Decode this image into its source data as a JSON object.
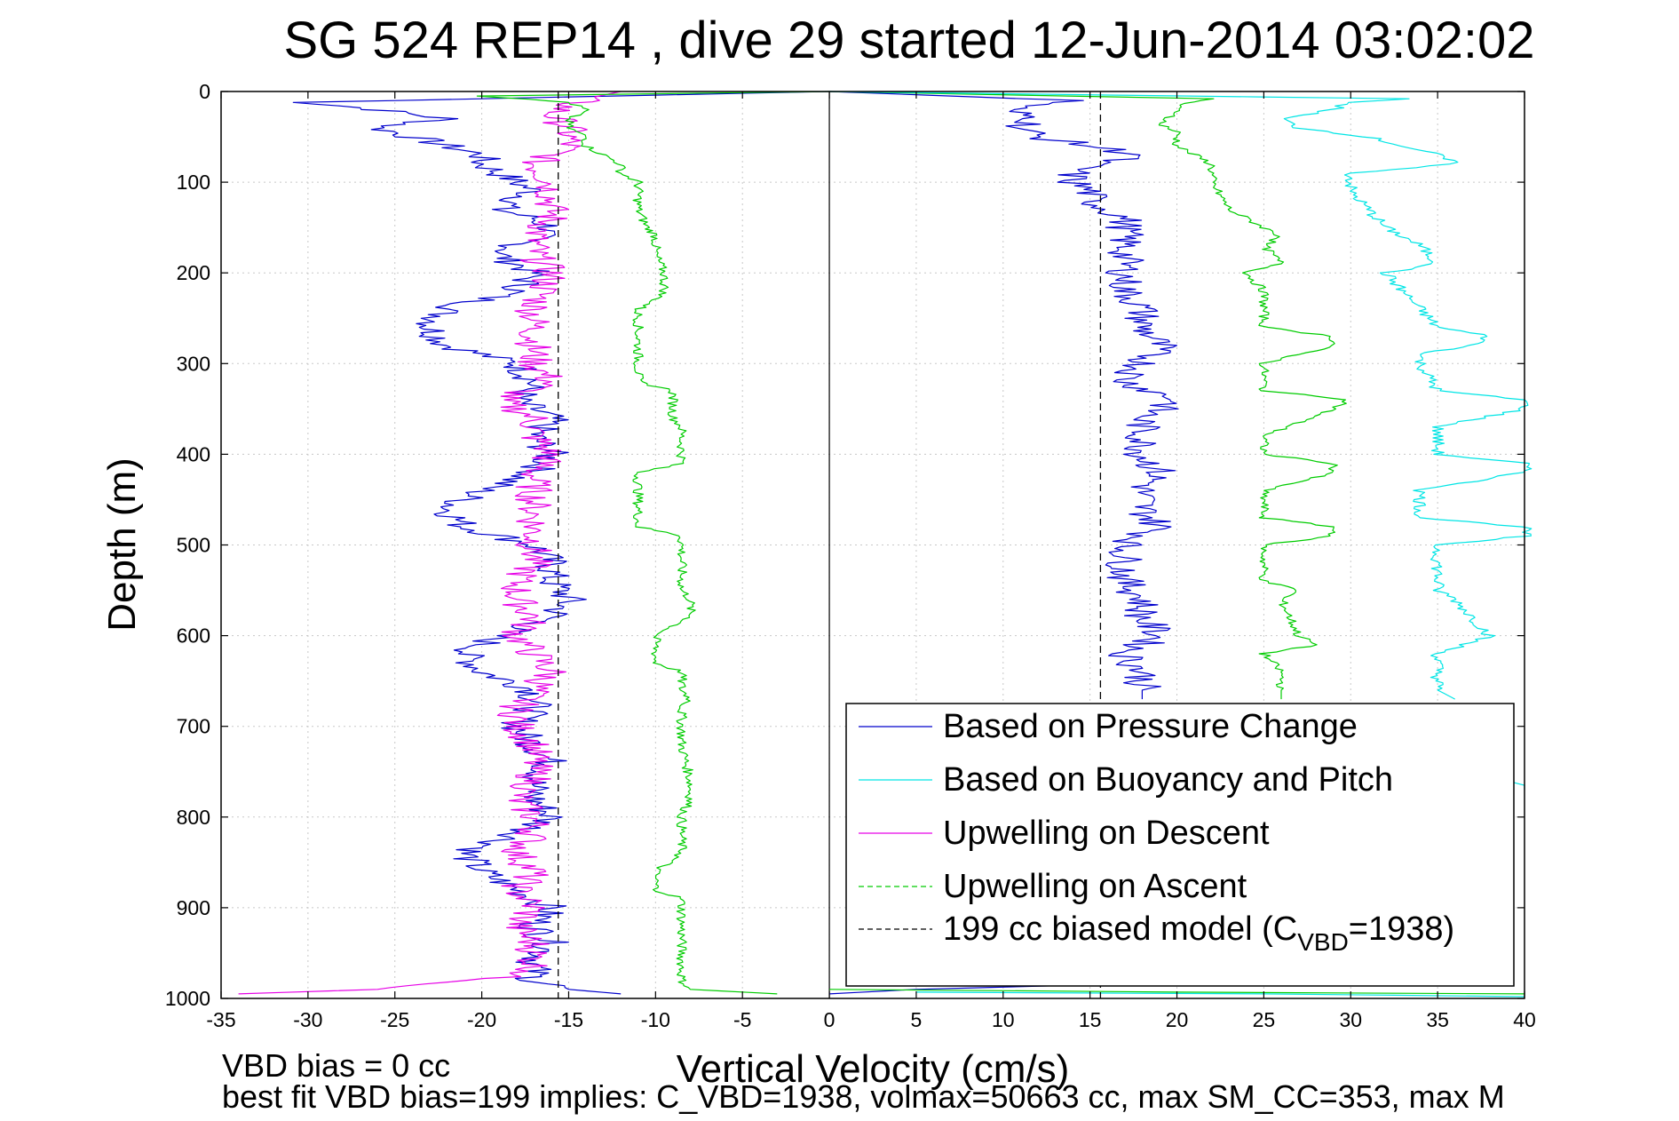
{
  "chart_data": {
    "type": "line",
    "title": "SG 524   REP14  , dive 29 started 12-Jun-2014 03:02:02",
    "xlabel": "Vertical Velocity (cm/s)",
    "ylabel": "Depth (m)",
    "xlim": [
      -35,
      40
    ],
    "ylim": [
      0,
      1000
    ],
    "y_reversed": true,
    "grid": true,
    "legend_position": "bottom-right",
    "x_ticks": [
      "-35",
      "-30",
      "-25",
      "-20",
      "-15",
      "-10",
      "-5",
      "0",
      "5",
      "10",
      "15",
      "20",
      "25",
      "30",
      "35",
      "40"
    ],
    "y_ticks": [
      "0",
      "100",
      "200",
      "300",
      "400",
      "500",
      "600",
      "700",
      "800",
      "900",
      "1000"
    ],
    "footer": [
      "VBD bias = 0 cc",
      "best fit VBD bias=199 implies: C_VBD=1938, volmax=50663 cc, max SM_CC=353, max M"
    ],
    "legend": [
      {
        "label": "Based on Pressure Change",
        "color": "#0000cc",
        "dashed": false
      },
      {
        "label": "Based on Buoyancy and Pitch",
        "color": "#00e5e5",
        "dashed": false
      },
      {
        "label": "Upwelling on Descent",
        "color": "#e600e6",
        "dashed": false
      },
      {
        "label": "Upwelling on Ascent",
        "color": "#00cc00",
        "dashed": true
      },
      {
        "label": "199 cc biased model (C",
        "sub": "VBD",
        "suffix": "=1938)",
        "color": "#000000",
        "dashed": true
      }
    ],
    "series": [
      {
        "name": "Based on Pressure Change",
        "color": "#0000cc",
        "dashed": false,
        "depth": [
          0,
          8,
          12,
          20,
          30,
          40,
          50,
          60,
          70,
          80,
          90,
          100,
          110,
          120,
          130,
          140,
          150,
          160,
          170,
          180,
          190,
          200,
          220,
          240,
          260,
          280,
          300,
          320,
          340,
          360,
          380,
          400,
          420,
          440,
          460,
          480,
          500,
          520,
          540,
          560,
          580,
          600,
          620,
          640,
          660,
          680,
          700,
          720,
          740,
          760,
          780,
          800,
          820,
          840,
          860,
          880,
          900,
          920,
          940,
          960,
          980,
          990,
          995
        ],
        "x": [
          0,
          -20,
          -30,
          -26,
          -22,
          -26,
          -24,
          -22,
          -20,
          -20,
          -19,
          -18,
          -17,
          -18,
          -19,
          -17,
          -16,
          -17,
          -18,
          -19,
          -18,
          -17,
          -18,
          -22,
          -23,
          -22,
          -18,
          -17,
          -18,
          -16,
          -17,
          -16,
          -17,
          -20,
          -22,
          -21,
          -17,
          -16,
          -16,
          -15,
          -16,
          -19,
          -21,
          -20,
          -17,
          -17,
          -18,
          -17,
          -16,
          -17,
          -17,
          -16,
          -18,
          -21,
          -20,
          -18,
          -16,
          -17,
          -16,
          -17,
          -17,
          -15,
          -12
        ]
      },
      {
        "name": "Upwelling on Descent",
        "color": "#e600e6",
        "dashed": false,
        "depth": [
          0,
          8,
          15,
          25,
          40,
          60,
          80,
          100,
          120,
          140,
          160,
          180,
          200,
          240,
          280,
          300,
          320,
          340,
          360,
          380,
          400,
          420,
          440,
          460,
          480,
          500,
          520,
          540,
          560,
          580,
          600,
          620,
          640,
          660,
          680,
          700,
          720,
          740,
          760,
          780,
          800,
          820,
          840,
          860,
          880,
          900,
          920,
          940,
          960,
          970,
          980,
          990,
          995
        ],
        "x": [
          -12,
          -14,
          -15,
          -16,
          -15,
          -15,
          -17,
          -16,
          -16,
          -16,
          -17,
          -17,
          -16,
          -17,
          -17,
          -17,
          -16,
          -19,
          -17,
          -17,
          -16,
          -17,
          -17,
          -17,
          -17,
          -17,
          -17,
          -18,
          -18,
          -17,
          -18,
          -17,
          -16,
          -17,
          -18,
          -18,
          -17,
          -17,
          -17,
          -18,
          -17,
          -17,
          -18,
          -17,
          -18,
          -17,
          -18,
          -17,
          -17,
          -17,
          -20,
          -26,
          -34
        ]
      },
      {
        "name": "Upwelling on Ascent",
        "color": "#00cc00",
        "dashed": true,
        "depth": [
          0,
          5,
          12,
          20,
          30,
          40,
          50,
          60,
          70,
          80,
          90,
          100,
          110,
          130,
          150,
          155,
          160,
          180,
          200,
          220,
          230,
          240,
          320,
          330,
          340,
          360,
          370,
          380,
          390,
          400,
          410,
          420,
          480,
          490,
          500,
          520,
          540,
          550,
          560,
          570,
          580,
          600,
          620,
          630,
          640,
          660,
          670,
          680,
          720,
          760,
          780,
          800,
          840,
          860,
          880,
          890,
          900,
          920,
          950,
          980,
          990,
          995
        ],
        "x": [
          0,
          -20,
          -15,
          -14,
          -15,
          -15,
          -14,
          -14,
          -13,
          -12,
          -12,
          -11,
          -11,
          -11,
          -10.5,
          -10.2,
          -10,
          -10,
          -9.5,
          -9.5,
          -10,
          -11,
          -11,
          -9,
          -9,
          -9,
          -8.5,
          -8.5,
          -8.5,
          -8.5,
          -8.5,
          -11,
          -11,
          -8.5,
          -8.5,
          -8.5,
          -8.5,
          -8.5,
          -8,
          -8,
          -8,
          -10,
          -10,
          -10,
          -8.5,
          -8.5,
          -8,
          -8.5,
          -8.5,
          -8,
          -8,
          -8.5,
          -8.5,
          -10,
          -10,
          -8.5,
          -8.5,
          -8.5,
          -8.5,
          -8.5,
          -8,
          -3
        ]
      },
      {
        "name": "Based on Pressure Change",
        "color": "#0000cc",
        "dashed": false,
        "depth": [
          0,
          10,
          20,
          30,
          40,
          50,
          60,
          70,
          80,
          90,
          100,
          110,
          120,
          130,
          140,
          160,
          180,
          200,
          220,
          240,
          260,
          280,
          300,
          320,
          340,
          360,
          380,
          400,
          420,
          440,
          460,
          480,
          500,
          520,
          540,
          560,
          580,
          600,
          620,
          640,
          660,
          670
        ],
        "x": [
          0,
          14,
          10,
          12,
          11,
          12,
          15,
          18,
          15,
          14,
          14,
          15,
          15,
          16,
          17,
          17,
          17,
          17,
          17,
          18,
          18,
          19,
          18,
          17,
          20,
          18,
          18,
          18,
          19,
          18,
          18,
          19,
          17,
          17,
          17,
          18,
          18,
          19,
          17,
          18,
          18,
          18
        ]
      },
      {
        "name": "Upwelling on Ascent",
        "color": "#00cc00",
        "dashed": true,
        "depth": [
          0,
          8,
          15,
          25,
          35,
          45,
          60,
          80,
          100,
          130,
          150,
          160,
          170,
          190,
          200,
          220,
          250,
          260,
          270,
          280,
          300,
          330,
          340,
          350,
          380,
          400,
          410,
          420,
          440,
          470,
          480,
          490,
          500,
          540,
          550,
          560,
          600,
          610,
          620,
          640,
          660,
          670
        ],
        "x": [
          0,
          22,
          20,
          20,
          19,
          20,
          20,
          22,
          22,
          23,
          25,
          26,
          25,
          26,
          24,
          25,
          25,
          25,
          29,
          29,
          25,
          25,
          30,
          29,
          25,
          25,
          29,
          29,
          25,
          25,
          29,
          29,
          25,
          25,
          27,
          26,
          27,
          28,
          25,
          26,
          26,
          26
        ]
      },
      {
        "name": "Based on Buoyancy and Pitch",
        "color": "#00e5e5",
        "dashed": true,
        "depth": [
          0,
          8,
          12,
          20,
          30,
          40,
          50,
          60,
          70,
          80,
          90,
          100,
          110,
          130,
          150,
          170,
          190,
          200,
          220,
          240,
          260,
          270,
          280,
          290,
          300,
          330,
          340,
          350,
          370,
          400,
          410,
          420,
          440,
          470,
          480,
          490,
          500,
          540,
          550,
          560,
          580,
          600,
          620,
          630,
          640,
          660,
          670
        ],
        "x": [
          0,
          33,
          30,
          29,
          26,
          27,
          31,
          33,
          35,
          36,
          30,
          30,
          30,
          31,
          32,
          34,
          35,
          32,
          33,
          34,
          35,
          38,
          37,
          34,
          34,
          35,
          40,
          40,
          35,
          35,
          40,
          40,
          34,
          34,
          40,
          40,
          35,
          35,
          35,
          36,
          37,
          38,
          35,
          35,
          35,
          35,
          36
        ]
      }
    ],
    "reference_lines": [
      {
        "name": "199 cc biased model (C",
        "color": "#000000",
        "dashed": true,
        "x": -15.6,
        "label_visible": false
      },
      {
        "name": "199 cc biased model (C",
        "color": "#000000",
        "dashed": true,
        "x": 15.6,
        "label_visible": false
      }
    ],
    "bottom_segments": [
      {
        "color": "#0000cc",
        "depth": [
          985,
          990,
          995
        ],
        "x": [
          15,
          5,
          0
        ]
      },
      {
        "color": "#00cc00",
        "depth": [
          990,
          993,
          995
        ],
        "x": [
          0,
          20,
          40
        ]
      },
      {
        "color": "#00e5e5",
        "depth": [
          993,
          995,
          998
        ],
        "x": [
          5,
          25,
          40
        ]
      },
      {
        "color": "#00e5e5",
        "depth": [
          760,
          765,
          770
        ],
        "x": [
          39,
          40,
          40
        ]
      }
    ]
  }
}
